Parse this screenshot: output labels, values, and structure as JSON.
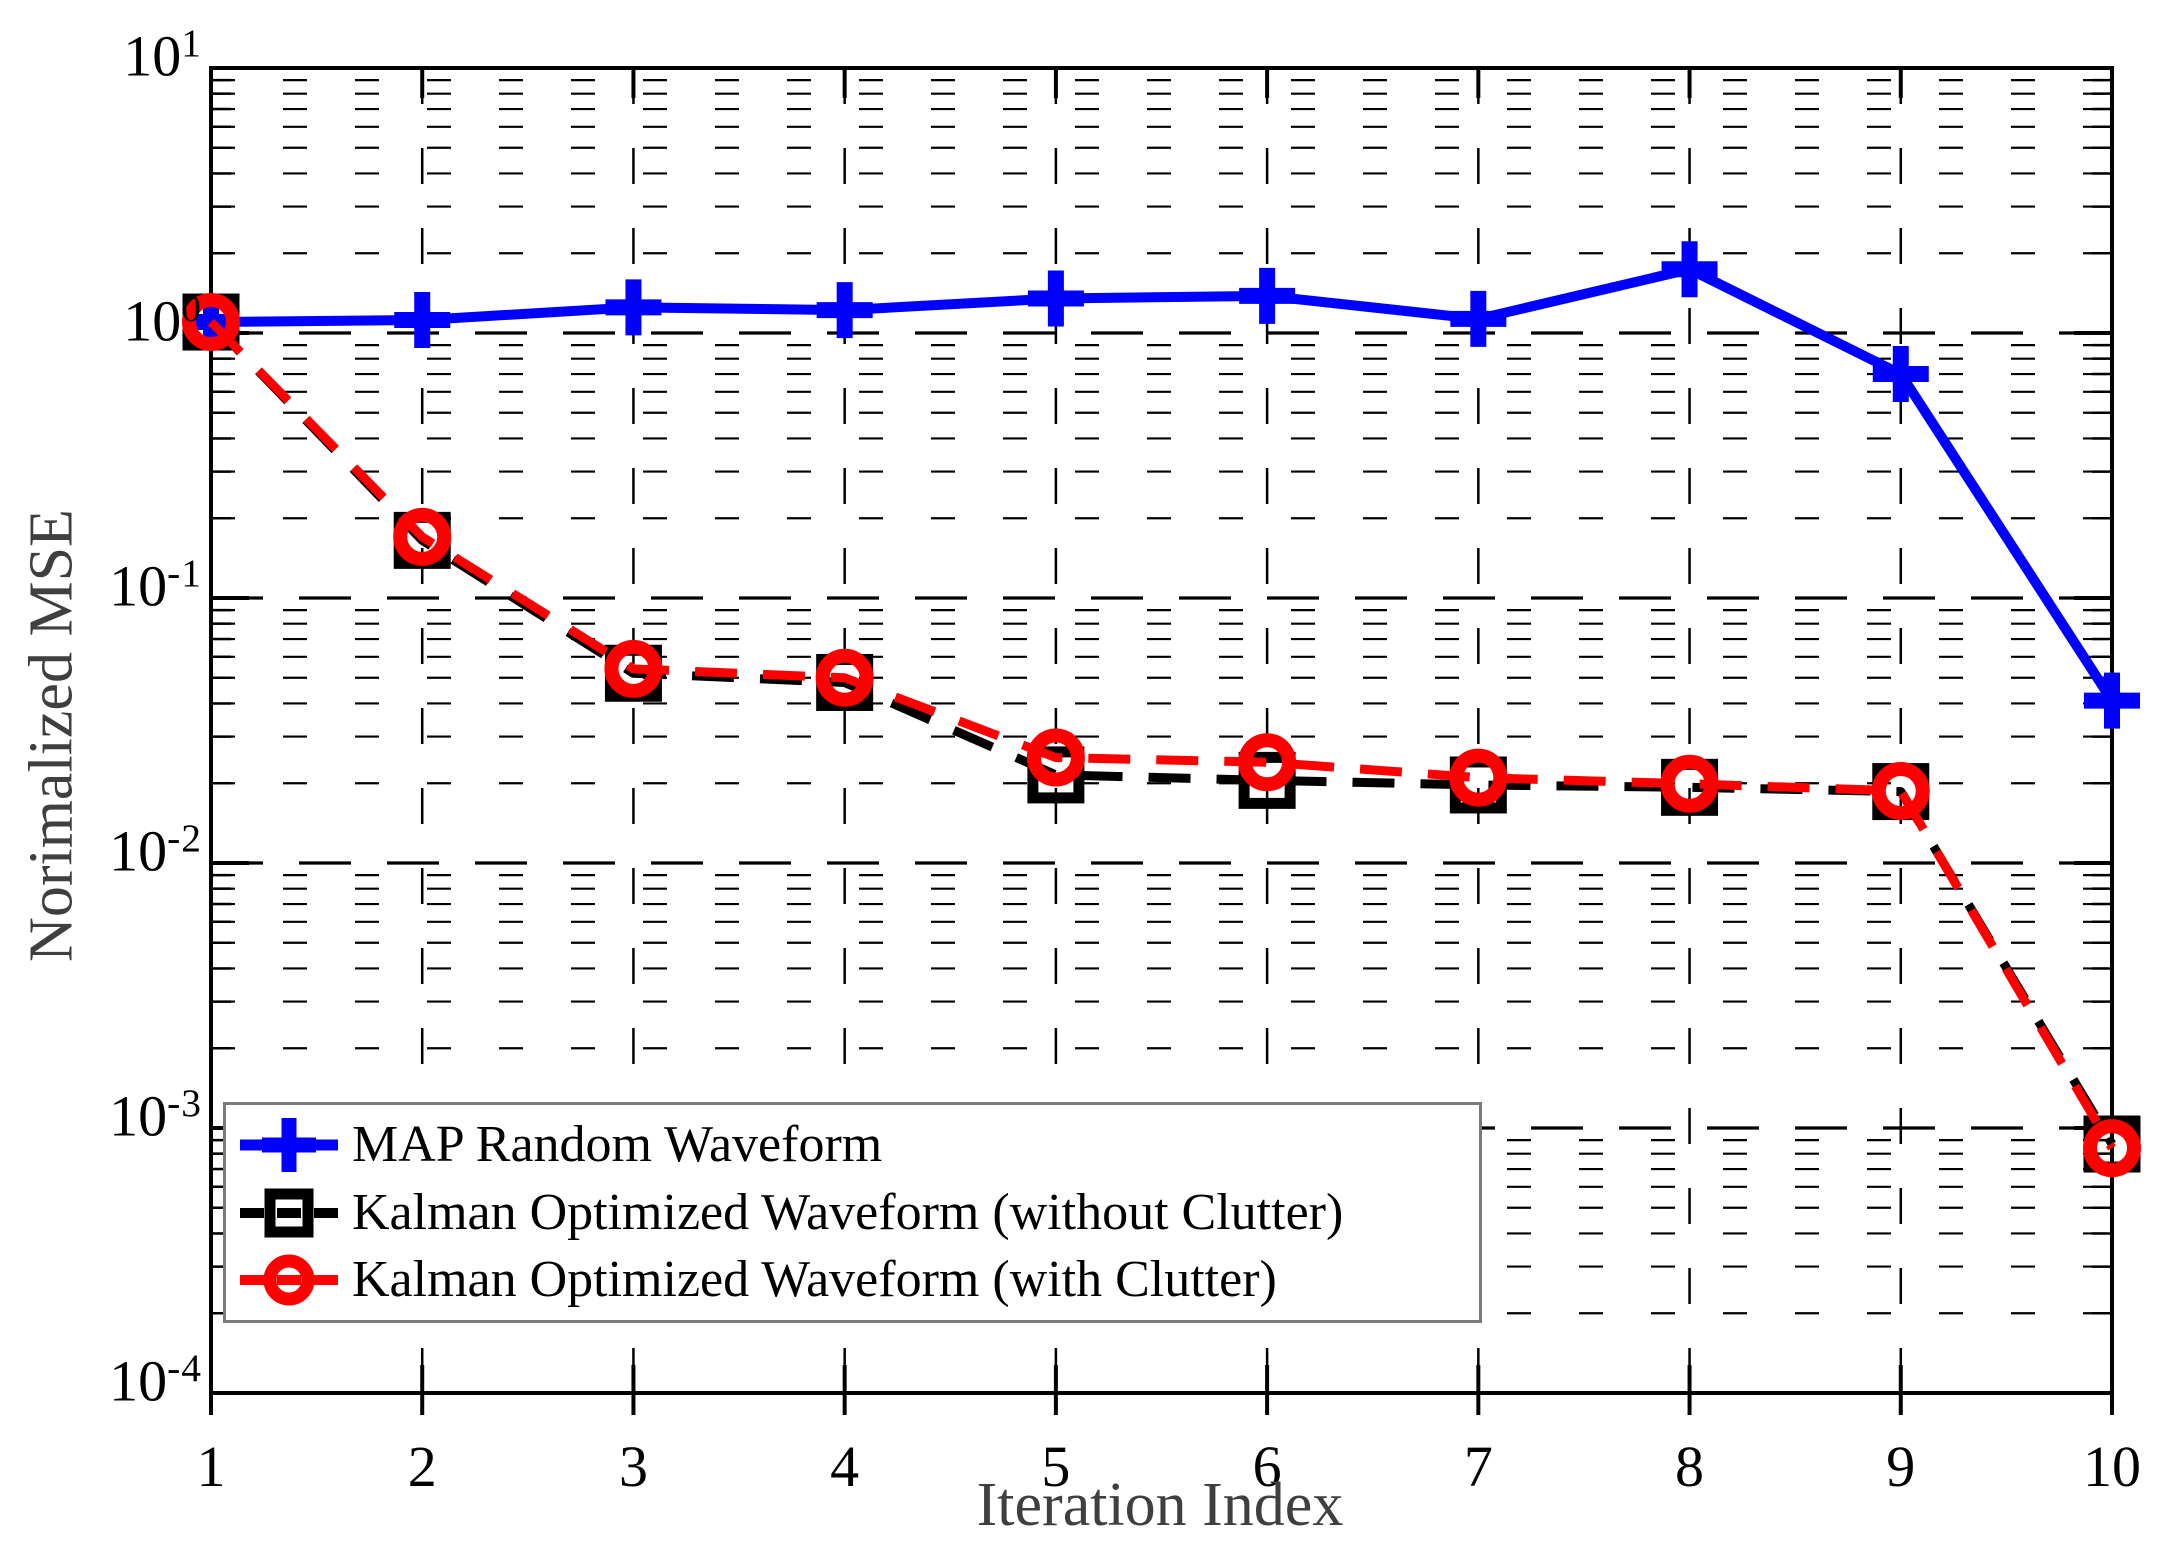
{
  "chart_data": {
    "type": "line",
    "title": "",
    "xlabel": "Iteration Index",
    "ylabel": "Norimalized MSE",
    "x": [
      1,
      2,
      3,
      4,
      5,
      6,
      7,
      8,
      9,
      10
    ],
    "x_tick_labels": [
      "1",
      "2",
      "3",
      "4",
      "5",
      "6",
      "7",
      "8",
      "9",
      "10"
    ],
    "y_scale": "log",
    "ylim": [
      0.0001,
      10
    ],
    "y_tick_exponents": [
      "1",
      "0",
      "-1",
      "-2",
      "-3",
      "-4"
    ],
    "grid": true,
    "legend_position": "lower-left",
    "series": [
      {
        "name": "MAP Random Waveform",
        "color": "#0000ff",
        "line_style": "solid",
        "marker": "plus",
        "values": [
          1.1,
          1.12,
          1.25,
          1.22,
          1.35,
          1.38,
          1.13,
          1.74,
          0.7,
          0.041
        ]
      },
      {
        "name": "Kalman Optimized Waveform (without Clutter)",
        "color": "#000000",
        "line_style": "dashed",
        "marker": "square",
        "values": [
          1.1,
          0.165,
          0.052,
          0.048,
          0.0215,
          0.0205,
          0.0197,
          0.0193,
          0.0186,
          0.00087
        ]
      },
      {
        "name": "Kalman Optimized Waveform (with Clutter)",
        "color": "#ff0000",
        "line_style": "dashed",
        "marker": "circle",
        "values": [
          1.1,
          0.17,
          0.054,
          0.05,
          0.025,
          0.024,
          0.021,
          0.0199,
          0.0187,
          0.00084
        ]
      }
    ]
  },
  "axes": {
    "tick_label_color": "#000000",
    "axis_label_color": "#3f3f3f",
    "axis_color": "#000000"
  },
  "legend": {
    "border_color": "#7a7a7a",
    "background": "#ffffff"
  }
}
